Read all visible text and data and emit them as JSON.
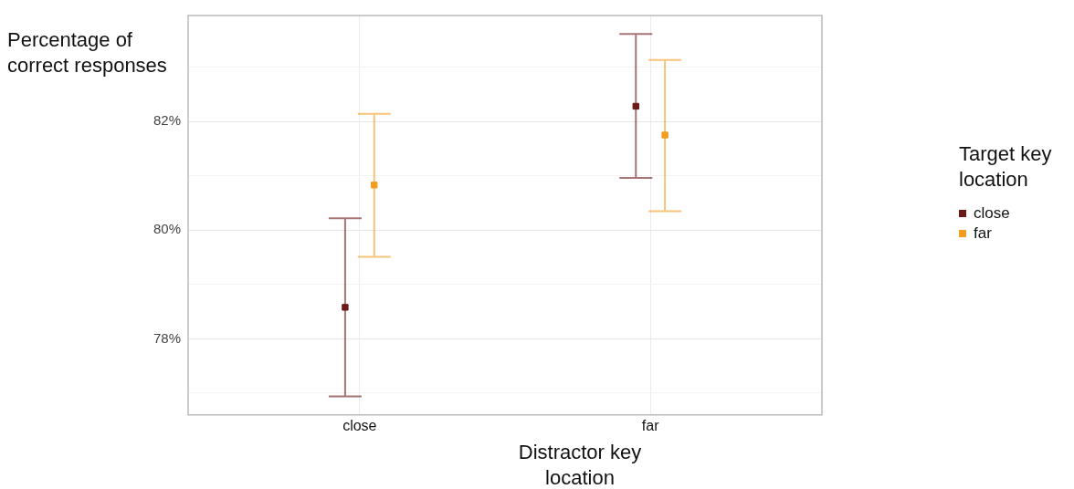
{
  "chart_data": {
    "type": "scatter",
    "xlabel": "Distractor key location",
    "ylabel": "Percentage of correct responses",
    "legend_title": "Target key location",
    "categories": [
      "close",
      "far"
    ],
    "ylim": [
      76.6,
      83.95
    ],
    "yticks": [
      {
        "value": 77,
        "label": null
      },
      {
        "value": 78,
        "label": "78%"
      },
      {
        "value": 79,
        "label": null
      },
      {
        "value": 80,
        "label": "80%"
      },
      {
        "value": 81,
        "label": null
      },
      {
        "value": 82,
        "label": "82%"
      },
      {
        "value": 83,
        "label": null
      }
    ],
    "grid": true,
    "legend": "right",
    "marker": "square",
    "series": [
      {
        "name": "close",
        "color": "#6b1a1a",
        "values": [
          78.58,
          82.28
        ],
        "errors": [
          [
            76.94,
            80.22
          ],
          [
            80.96,
            83.61
          ]
        ]
      },
      {
        "name": "far",
        "color": "#f39c1f",
        "values": [
          80.83,
          81.75
        ],
        "errors": [
          [
            79.51,
            82.14
          ],
          [
            80.35,
            83.13
          ]
        ]
      }
    ]
  }
}
